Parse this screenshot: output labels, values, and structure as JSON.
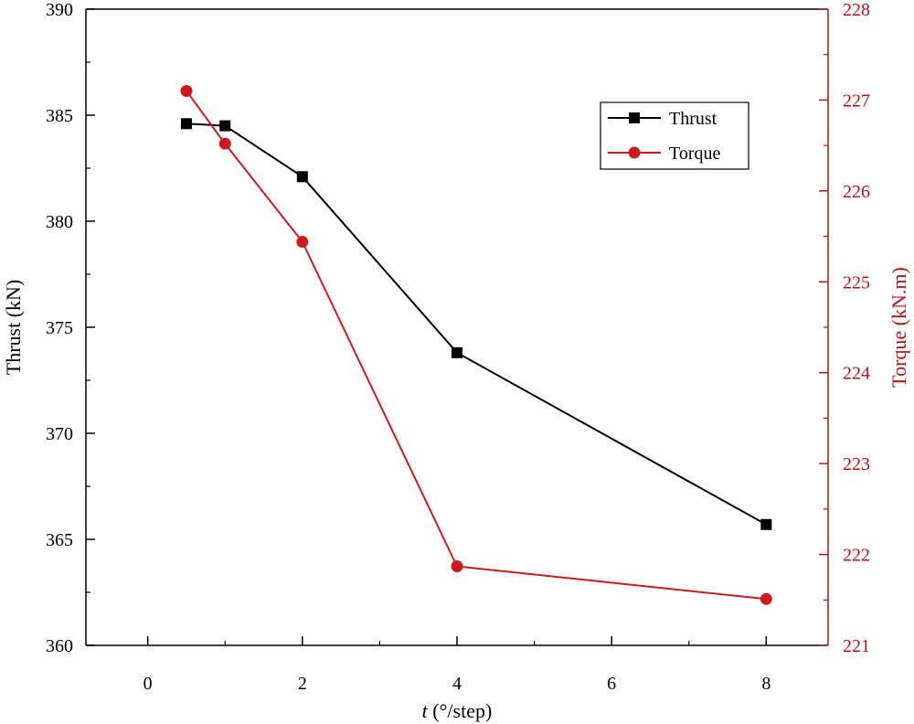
{
  "chart_data": {
    "type": "line",
    "x": [
      0.5,
      1,
      2,
      4,
      8
    ],
    "x_display": [
      0.5,
      1,
      2,
      4,
      8
    ],
    "xlim": [
      -0.8,
      8.8
    ],
    "xticks": [
      0,
      2,
      4,
      6,
      8
    ],
    "xtick_positions": [
      0,
      2,
      4,
      6,
      8
    ],
    "xlabel_italic": "t",
    "xlabel_rest": " (°/step)",
    "left_axis": {
      "label": "Thrust (kN)",
      "lim": [
        360,
        390
      ],
      "ticks": [
        360,
        365,
        370,
        375,
        380,
        385,
        390
      ],
      "color": "#000000"
    },
    "right_axis": {
      "label": "Torque (kN.m)",
      "lim": [
        221,
        228
      ],
      "ticks": [
        221,
        222,
        223,
        224,
        225,
        226,
        227,
        228
      ],
      "color": "#b5131b"
    },
    "series": [
      {
        "name": "Thrust",
        "axis": "left",
        "marker": "square",
        "color": "#000000",
        "values": [
          384.6,
          384.5,
          382.1,
          373.8,
          365.7
        ]
      },
      {
        "name": "Torque",
        "axis": "right",
        "marker": "circle",
        "color": "#cc1a22",
        "values": [
          227.1,
          226.52,
          225.44,
          221.87,
          221.51
        ]
      }
    ],
    "legend_position": "top-right"
  }
}
